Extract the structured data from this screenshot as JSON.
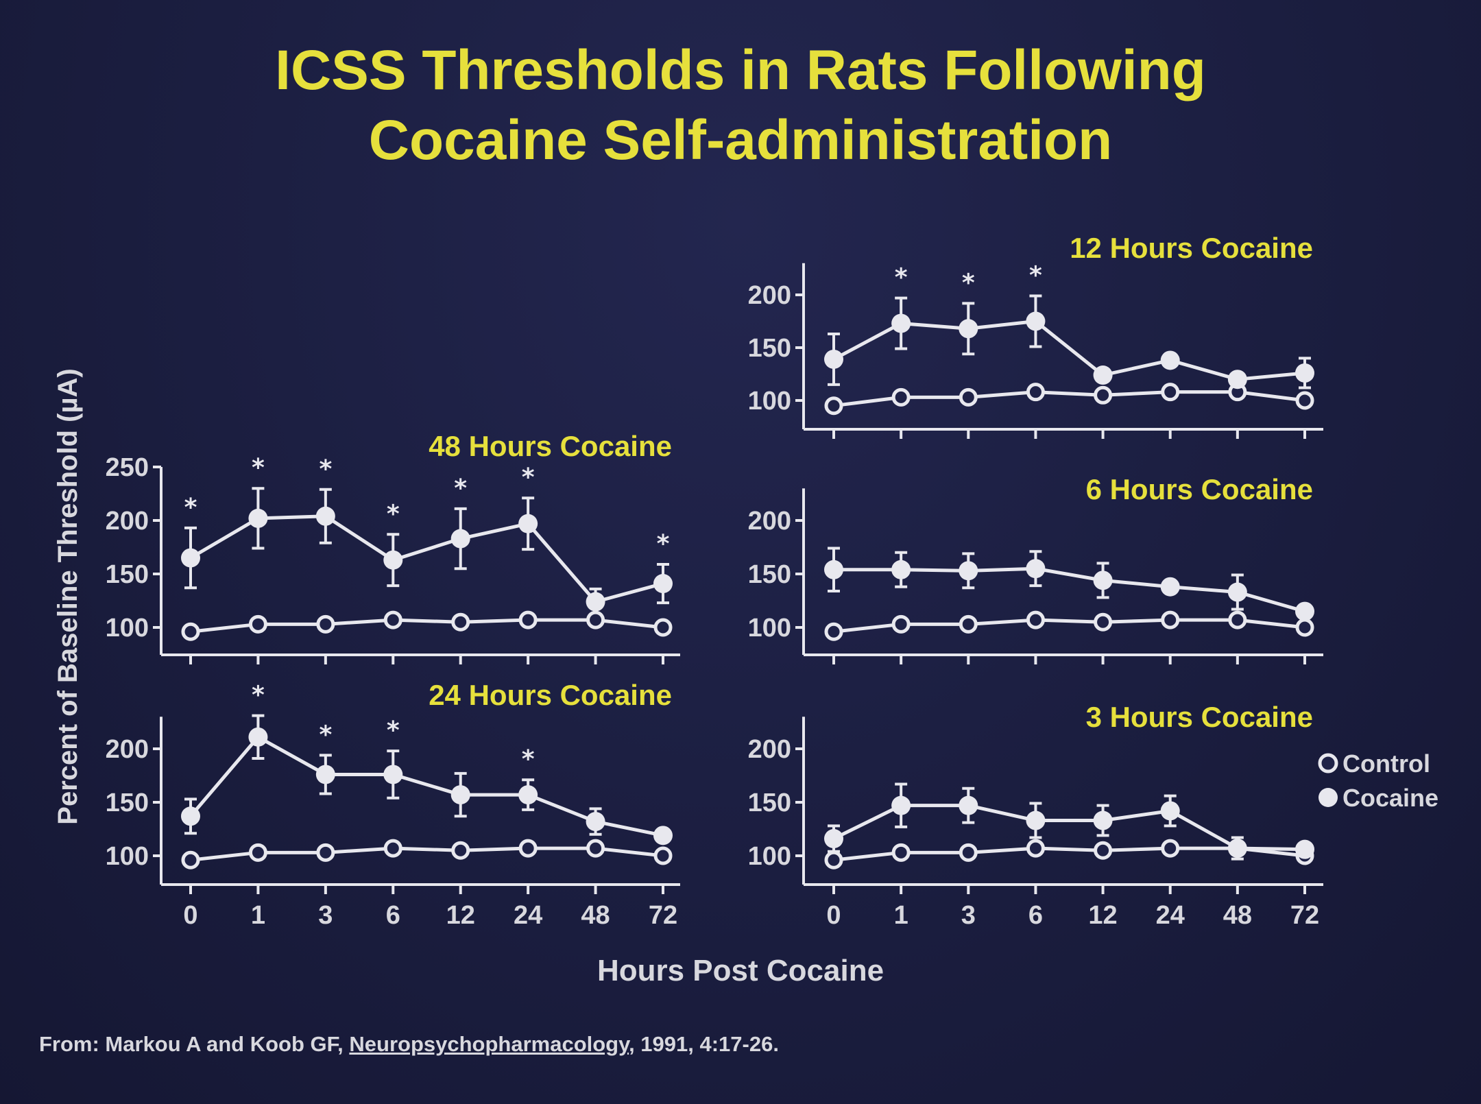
{
  "slide": {
    "title_line1": "ICSS Thresholds in Rats Following",
    "title_line2": "Cocaine Self-administration",
    "source_prefix": "From: Markou A and Koob GF, ",
    "source_journal": "Neuropsychopharmacology",
    "source_suffix": ", 1991, 4:17-26."
  },
  "colors": {
    "background": "#1c1f42",
    "title": "#e6e03c",
    "panel_label": "#e6e03c",
    "axis": "#e8e8ee",
    "text": "#d8d8de"
  },
  "chart_data": {
    "type": "line",
    "ylabel": "Percent of Baseline Threshold (µA)",
    "xlabel": "Hours Post Cocaine",
    "categories": [
      "0",
      "1",
      "3",
      "6",
      "12",
      "24",
      "48",
      "72"
    ],
    "legend": {
      "placement": "right",
      "entries": [
        {
          "name": "Control",
          "marker": "open-circle"
        },
        {
          "name": "Cocaine",
          "marker": "filled-circle"
        }
      ]
    },
    "significance_marker": "*",
    "panels": [
      {
        "id": "p48",
        "label": "48 Hours Cocaine",
        "yticks": [
          "100",
          "150",
          "200",
          "250"
        ],
        "ylim": [
          75,
          250
        ],
        "series": [
          {
            "name": "Control",
            "values": [
              96,
              103,
              103,
              107,
              105,
              107,
              107,
              100
            ]
          },
          {
            "name": "Cocaine",
            "values": [
              165,
              202,
              204,
              163,
              183,
              197,
              124,
              141
            ],
            "errors": [
              28,
              28,
              25,
              24,
              28,
              24,
              12,
              18
            ]
          }
        ],
        "significant": [
          true,
          true,
          true,
          true,
          true,
          true,
          false,
          true
        ]
      },
      {
        "id": "p24",
        "label": "24 Hours Cocaine",
        "yticks": [
          "100",
          "150",
          "200"
        ],
        "ylim": [
          75,
          230
        ],
        "series": [
          {
            "name": "Control",
            "values": [
              96,
              103,
              103,
              107,
              105,
              107,
              107,
              100
            ]
          },
          {
            "name": "Cocaine",
            "values": [
              137,
              211,
              176,
              176,
              157,
              157,
              132,
              119
            ],
            "errors": [
              16,
              20,
              18,
              22,
              20,
              14,
              12,
              0
            ]
          }
        ],
        "significant": [
          false,
          true,
          true,
          true,
          false,
          true,
          false,
          false
        ]
      },
      {
        "id": "p12",
        "label": "12 Hours Cocaine",
        "yticks": [
          "100",
          "150",
          "200"
        ],
        "ylim": [
          75,
          230
        ],
        "series": [
          {
            "name": "Control",
            "values": [
              95,
              103,
              103,
              108,
              105,
              108,
              108,
              100
            ]
          },
          {
            "name": "Cocaine",
            "values": [
              139,
              173,
              168,
              175,
              124,
              138,
              120,
              126
            ],
            "errors": [
              24,
              24,
              24,
              24,
              0,
              0,
              0,
              14
            ]
          }
        ],
        "significant": [
          false,
          true,
          true,
          true,
          false,
          false,
          false,
          false
        ]
      },
      {
        "id": "p6",
        "label": "6 Hours Cocaine",
        "yticks": [
          "100",
          "150",
          "200"
        ],
        "ylim": [
          75,
          230
        ],
        "series": [
          {
            "name": "Control",
            "values": [
              96,
              103,
              103,
              107,
              105,
              107,
              107,
              100
            ]
          },
          {
            "name": "Cocaine",
            "values": [
              154,
              154,
              153,
              155,
              144,
              138,
              133,
              115
            ],
            "errors": [
              20,
              16,
              16,
              16,
              16,
              0,
              16,
              0
            ]
          }
        ],
        "significant": [
          false,
          false,
          false,
          false,
          false,
          false,
          false,
          false
        ]
      },
      {
        "id": "p3",
        "label": "3 Hours Cocaine",
        "yticks": [
          "100",
          "150",
          "200"
        ],
        "ylim": [
          75,
          230
        ],
        "series": [
          {
            "name": "Control",
            "values": [
              96,
              103,
              103,
              107,
              105,
              107,
              107,
              100
            ]
          },
          {
            "name": "Cocaine",
            "values": [
              116,
              147,
              147,
              133,
              133,
              142,
              107,
              106
            ],
            "errors": [
              12,
              20,
              16,
              16,
              14,
              14,
              10,
              0
            ]
          }
        ],
        "significant": [
          false,
          false,
          false,
          false,
          false,
          false,
          false,
          false
        ]
      }
    ]
  }
}
